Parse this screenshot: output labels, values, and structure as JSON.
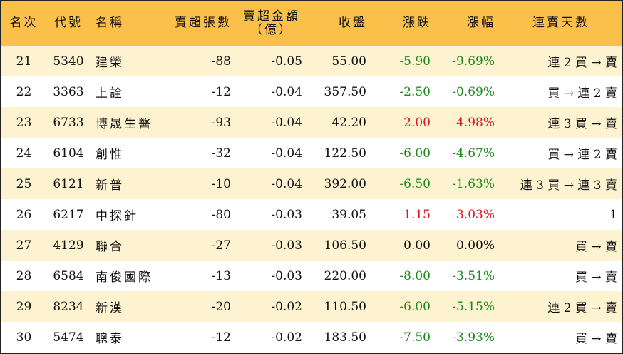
{
  "headers": {
    "rank": "名次",
    "code": "代號",
    "name": "名稱",
    "net_sell_lots": "賣超張數",
    "net_sell_amount_line1": "賣超金額",
    "net_sell_amount_line2": "（億）",
    "close": "收盤",
    "change": "漲跌",
    "change_pct": "漲幅",
    "streak": "連賣天數"
  },
  "colors": {
    "header_bg": "#FBC04A",
    "stripe_bg": "#FEF3D1",
    "up": "#E0141E",
    "down": "#1B8A1B"
  },
  "rows": [
    {
      "rank": "21",
      "code": "5340",
      "name": "建榮",
      "lots": "-88",
      "amount": "-0.05",
      "close": "55.00",
      "change": "-5.90",
      "pct": "-9.69%",
      "dir": "down",
      "streak": "連 2 買 → 賣"
    },
    {
      "rank": "22",
      "code": "3363",
      "name": "上詮",
      "lots": "-12",
      "amount": "-0.04",
      "close": "357.50",
      "change": "-2.50",
      "pct": "-0.69%",
      "dir": "down",
      "streak": "買 → 連 2 賣"
    },
    {
      "rank": "23",
      "code": "6733",
      "name": "博晟生醫",
      "lots": "-93",
      "amount": "-0.04",
      "close": "42.20",
      "change": "2.00",
      "pct": "4.98%",
      "dir": "up",
      "streak": "連 3 買 → 賣"
    },
    {
      "rank": "24",
      "code": "6104",
      "name": "創惟",
      "lots": "-32",
      "amount": "-0.04",
      "close": "122.50",
      "change": "-6.00",
      "pct": "-4.67%",
      "dir": "down",
      "streak": "買 → 連 2 賣"
    },
    {
      "rank": "25",
      "code": "6121",
      "name": "新普",
      "lots": "-10",
      "amount": "-0.04",
      "close": "392.00",
      "change": "-6.50",
      "pct": "-1.63%",
      "dir": "down",
      "streak": "連 3 買 → 連 3 賣"
    },
    {
      "rank": "26",
      "code": "6217",
      "name": "中探針",
      "lots": "-80",
      "amount": "-0.03",
      "close": "39.05",
      "change": "1.15",
      "pct": "3.03%",
      "dir": "up",
      "streak": "1"
    },
    {
      "rank": "27",
      "code": "4129",
      "name": "聯合",
      "lots": "-27",
      "amount": "-0.03",
      "close": "106.50",
      "change": "0.00",
      "pct": "0.00%",
      "dir": "flat",
      "streak": "買 → 賣"
    },
    {
      "rank": "28",
      "code": "6584",
      "name": "南俊國際",
      "lots": "-13",
      "amount": "-0.03",
      "close": "220.00",
      "change": "-8.00",
      "pct": "-3.51%",
      "dir": "down",
      "streak": "買 → 賣"
    },
    {
      "rank": "29",
      "code": "8234",
      "name": "新漢",
      "lots": "-20",
      "amount": "-0.02",
      "close": "110.50",
      "change": "-6.00",
      "pct": "-5.15%",
      "dir": "down",
      "streak": "連 2 買 → 賣"
    },
    {
      "rank": "30",
      "code": "5474",
      "name": "聰泰",
      "lots": "-12",
      "amount": "-0.02",
      "close": "183.50",
      "change": "-7.50",
      "pct": "-3.93%",
      "dir": "down",
      "streak": "買 → 賣"
    }
  ]
}
